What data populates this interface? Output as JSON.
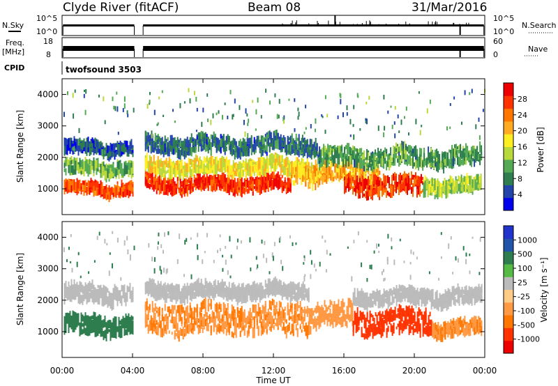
{
  "header": {
    "station": "Clyde River (fitACF)",
    "beam": "Beam 08",
    "date": "31/Mar/2016"
  },
  "status_panels": {
    "nsky": {
      "label": "N.Sky",
      "ticks": [
        "10^5",
        "10^0"
      ]
    },
    "nsearch": {
      "label": "N.Search",
      "ticks": [
        "10^5",
        "10^0"
      ]
    },
    "freq": {
      "label_line1": "Freq.",
      "label_line2": "[MHz]",
      "ticks": [
        "18",
        "8"
      ]
    },
    "nave": {
      "label": "Nave",
      "ticks": [
        "60",
        "0"
      ]
    },
    "cpid_label": "CPID",
    "cpid_value": "twofsound 3503"
  },
  "colors": {
    "power_scale": [
      "#0000ee",
      "#2244aa",
      "#2e7d4f",
      "#55aa55",
      "#b8d83c",
      "#ffee22",
      "#ffaa22",
      "#ff7700",
      "#ff3300",
      "#ee0000"
    ],
    "velocity_scale": [
      "#ee0000",
      "#ff3300",
      "#ff7700",
      "#ff9944",
      "#ffcc88",
      "#bbbbbb",
      "#55bb44",
      "#2e7d4f",
      "#2255aa",
      "#2233cc"
    ],
    "ground_scatter": "#bbbbbb"
  },
  "chart_data": [
    {
      "type": "heatmap",
      "name": "power",
      "xlabel": "Time UT",
      "ylabel": "Slant Range [km]",
      "x_ticks": [
        "00:00",
        "04:00",
        "08:00",
        "12:00",
        "16:00",
        "20:00",
        "00:00"
      ],
      "y_ticks": [
        "1000",
        "2000",
        "3000",
        "4000"
      ],
      "xlim_hours": [
        0,
        24
      ],
      "ylim_km": [
        180,
        4500
      ],
      "colorbar": {
        "label": "Power [dB]",
        "ticks": [
          "28",
          "24",
          "20",
          "16",
          "12",
          "8",
          "4"
        ],
        "range": [
          0,
          32
        ]
      },
      "data_gap_hours": [
        4.1,
        4.6
      ],
      "echo_bands": [
        {
          "start_h": 0.1,
          "end_h": 4.0,
          "center_km": 1000,
          "width_km": 280,
          "value": 26
        },
        {
          "start_h": 0.1,
          "end_h": 4.0,
          "center_km": 1650,
          "width_km": 350,
          "value": 12
        },
        {
          "start_h": 0.1,
          "end_h": 4.0,
          "center_km": 2300,
          "width_km": 300,
          "value": 6
        },
        {
          "start_h": 4.7,
          "end_h": 13.0,
          "center_km": 1150,
          "width_km": 380,
          "value": 28
        },
        {
          "start_h": 4.7,
          "end_h": 14.5,
          "center_km": 1700,
          "width_km": 400,
          "value": 17
        },
        {
          "start_h": 4.7,
          "end_h": 14.5,
          "center_km": 2400,
          "width_km": 450,
          "value": 7
        },
        {
          "start_h": 13.0,
          "end_h": 18.0,
          "center_km": 1500,
          "width_km": 600,
          "value": 20
        },
        {
          "start_h": 14.5,
          "end_h": 23.8,
          "center_km": 2000,
          "width_km": 500,
          "value": 10
        },
        {
          "start_h": 16.0,
          "end_h": 20.5,
          "center_km": 1100,
          "width_km": 550,
          "value": 27
        },
        {
          "start_h": 20.5,
          "end_h": 23.8,
          "center_km": 1100,
          "width_km": 400,
          "value": 14
        }
      ]
    },
    {
      "type": "heatmap",
      "name": "velocity",
      "xlabel": "Time UT",
      "ylabel": "Slant Range [km]",
      "x_ticks": [
        "00:00",
        "04:00",
        "08:00",
        "12:00",
        "16:00",
        "20:00",
        "00:00"
      ],
      "y_ticks": [
        "1000",
        "2000",
        "3000",
        "4000"
      ],
      "xlim_hours": [
        0,
        24
      ],
      "ylim_km": [
        180,
        4500
      ],
      "colorbar": {
        "label": "Velocity [m s⁻¹]",
        "ticks": [
          "1000",
          "500",
          "100",
          "25",
          "-25",
          "-100",
          "-500",
          "-1000"
        ]
      },
      "data_gap_hours": [
        4.1,
        4.6
      ],
      "echo_bands": [
        {
          "start_h": 0.1,
          "end_h": 4.0,
          "center_km": 1200,
          "width_km": 500,
          "value": 100
        },
        {
          "start_h": 0.1,
          "end_h": 4.0,
          "center_km": 2200,
          "width_km": 500,
          "value": 0
        },
        {
          "start_h": 4.7,
          "end_h": 14.0,
          "center_km": 1400,
          "width_km": 900,
          "value": -150
        },
        {
          "start_h": 4.7,
          "end_h": 14.0,
          "center_km": 2300,
          "width_km": 400,
          "value": 0
        },
        {
          "start_h": 14.0,
          "end_h": 16.5,
          "center_km": 1500,
          "width_km": 700,
          "value": -120
        },
        {
          "start_h": 16.5,
          "end_h": 21.0,
          "center_km": 1300,
          "width_km": 700,
          "value": -500
        },
        {
          "start_h": 16.5,
          "end_h": 23.8,
          "center_km": 2100,
          "width_km": 400,
          "value": 0
        },
        {
          "start_h": 21.0,
          "end_h": 23.8,
          "center_km": 1100,
          "width_km": 400,
          "value": -150
        }
      ]
    }
  ]
}
